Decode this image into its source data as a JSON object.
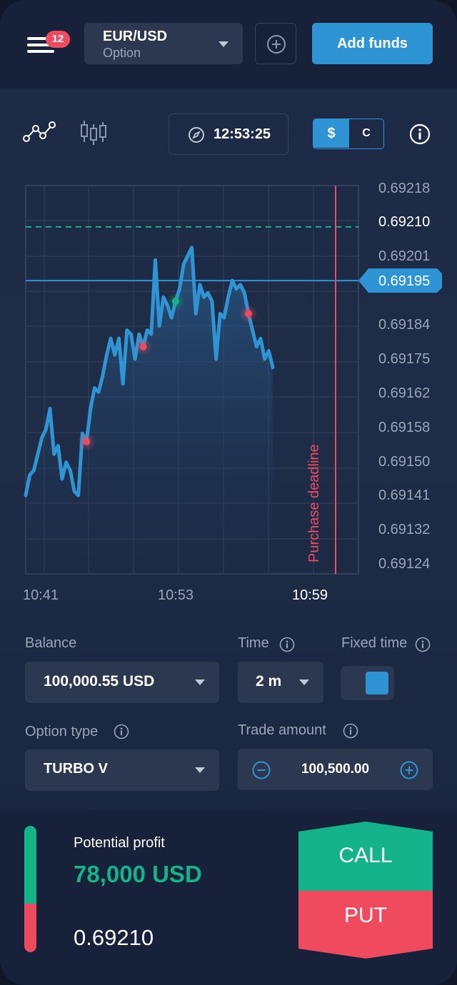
{
  "header": {
    "menu_icon": "hamburger-icon",
    "notification_count": "12",
    "pair": {
      "name": "EUR/USD",
      "type": "Option"
    },
    "add_pair_icon": "plus-circle-icon",
    "add_funds_label": "Add funds"
  },
  "toolbar": {
    "line_chart_icon": "line-chart-icon",
    "candles_icon": "candlestick-icon",
    "clock_icon": "compass-icon",
    "time": "12:53:25",
    "currency_options": [
      "$",
      "C"
    ],
    "currency_selected": "$",
    "info_icon": "info-icon"
  },
  "chart_data": {
    "type": "line",
    "x_ticks": [
      "10:41",
      "10:53",
      "10:59"
    ],
    "y_ticks": [
      0.69218,
      0.6921,
      0.69201,
      0.69195,
      0.69184,
      0.69175,
      0.69162,
      0.69158,
      0.6915,
      0.69141,
      0.69132,
      0.69124
    ],
    "y_tick_labels": [
      "0.69218",
      "0.69210",
      "0.69201",
      "0.69195",
      "0.69184",
      "0.69175",
      "0.69162",
      "0.69158",
      "0.69150",
      "0.69141",
      "0.69132",
      "0.69124"
    ],
    "current_price": "0.69195",
    "purchase_deadline_label": "Purchase deadline",
    "ylim": [
      0.69124,
      0.69218
    ],
    "series": [
      {
        "values": [
          0.69143,
          0.69148,
          0.69149,
          0.69153,
          0.69157,
          0.69159,
          0.69164,
          0.69153,
          0.69155,
          0.69147,
          0.69151,
          0.69149,
          0.69144,
          0.69143,
          0.69158,
          0.69156,
          0.69164,
          0.69169,
          0.69168,
          0.69172,
          0.69177,
          0.69181,
          0.69177,
          0.69181,
          0.6917,
          0.69183,
          0.69182,
          0.69176,
          0.69182,
          0.69179,
          0.69183,
          0.69182,
          0.692,
          0.69184,
          0.69191,
          0.69189,
          0.69186,
          0.6919,
          0.69193,
          0.69199,
          0.69201,
          0.69203,
          0.69187,
          0.69194,
          0.69191,
          0.69192,
          0.6919,
          0.69176,
          0.69187,
          0.69186,
          0.69191,
          0.69195,
          0.69193,
          0.69194,
          0.69192,
          0.69187,
          0.69183,
          0.69179,
          0.69181,
          0.69176,
          0.69178,
          0.69174
        ]
      }
    ],
    "markers": [
      {
        "index": 15,
        "color": "#f04a5e"
      },
      {
        "index": 29,
        "color": "#f04a5e"
      },
      {
        "index": 37,
        "color": "#14b389"
      },
      {
        "index": 55,
        "color": "#f04a5e"
      }
    ],
    "dashed_level": 0.69208,
    "colors": {
      "line": "#2f94d4",
      "deadline": "#f04a5e",
      "dashed": "#14b389"
    }
  },
  "form": {
    "balance": {
      "label": "Balance",
      "value": "100,000.55 USD"
    },
    "time": {
      "label": "Time",
      "value": "2 m"
    },
    "fixed_time": {
      "label": "Fixed time",
      "enabled": true
    },
    "option_type": {
      "label": "Option type",
      "value": "TURBO V"
    },
    "trade_amount": {
      "label": "Trade amount",
      "value": "100,500.00",
      "minus_icon": "minus-circle-icon",
      "plus_icon": "plus-circle-icon"
    }
  },
  "trade": {
    "potential_profit_label": "Potential profit",
    "potential_profit_value": "78,000 USD",
    "strike_price": "0.69210",
    "call_label": "CALL",
    "put_label": "PUT",
    "colors": {
      "call": "#14b389",
      "put": "#f04a5e"
    }
  }
}
